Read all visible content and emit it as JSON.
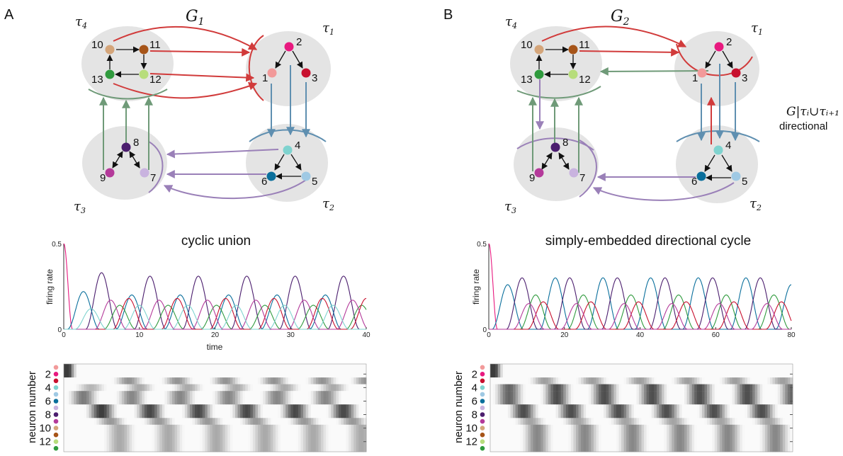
{
  "panelA": {
    "letter": "A",
    "graph_title": "G",
    "graph_sub": "1",
    "taus": [
      {
        "t": "τ",
        "s": "4"
      },
      {
        "t": "τ",
        "s": "1"
      },
      {
        "t": "τ",
        "s": "3"
      },
      {
        "t": "τ",
        "s": "2"
      }
    ],
    "chart_title": "cyclic union",
    "ylabel": "firing rate",
    "xlabel": "time",
    "yticks": [
      "0.5",
      "0"
    ],
    "xticks": [
      "0",
      "10",
      "20",
      "30",
      "40"
    ],
    "raster_ylabel": "neuron number",
    "raster_ticks": [
      "2",
      "4",
      "6",
      "8",
      "10",
      "12"
    ]
  },
  "panelB": {
    "letter": "B",
    "graph_title": "G",
    "graph_sub": "2",
    "taus": [
      {
        "t": "τ",
        "s": "4"
      },
      {
        "t": "τ",
        "s": "1"
      },
      {
        "t": "τ",
        "s": "3"
      },
      {
        "t": "τ",
        "s": "2"
      }
    ],
    "annotation_math": "G|τᵢ∪τᵢ₊₁",
    "annotation_word": "directional",
    "chart_title": "simply-embedded directional cycle",
    "ylabel": "firing rate",
    "yticks": [
      "0.5",
      "0"
    ],
    "xticks": [
      "0",
      "20",
      "40",
      "60",
      "80"
    ],
    "raster_ylabel": "neuron number",
    "raster_ticks": [
      "2",
      "4",
      "6",
      "8",
      "10",
      "12"
    ]
  },
  "node_labels": [
    "1",
    "2",
    "3",
    "4",
    "5",
    "6",
    "7",
    "8",
    "9",
    "10",
    "11",
    "12",
    "13"
  ],
  "node_colors": [
    "#f29a9a",
    "#e8197f",
    "#c8102e",
    "#7fd3cf",
    "#9fc9e4",
    "#0a6f9c",
    "#c9b3df",
    "#4b1e6e",
    "#b43a9a",
    "#d4a57a",
    "#a65418",
    "#b7dd7c",
    "#2f9a3d"
  ],
  "edge_colors": {
    "red": "#d13b3b",
    "blue": "#5f8fb0",
    "purple": "#9a80b8",
    "green": "#6f9a78"
  },
  "chart_data": [
    {
      "type": "line",
      "title": "cyclic union",
      "xlabel": "time",
      "ylabel": "firing rate",
      "xlim": [
        0,
        40
      ],
      "ylim": [
        0,
        0.5
      ],
      "period": 6.4,
      "series": [
        {
          "color": "#e8197f",
          "peaks": [
            [
              0,
              0.5
            ]
          ]
        },
        {
          "color": "#4b1e6e",
          "peaks": [
            [
              5,
              0.33
            ],
            [
              11.4,
              0.31
            ],
            [
              17.8,
              0.31
            ],
            [
              24.2,
              0.31
            ],
            [
              30.6,
              0.31
            ],
            [
              37,
              0.31
            ]
          ]
        },
        {
          "color": "#0a6f9c",
          "peaks": [
            [
              2.6,
              0.22
            ],
            [
              9,
              0.2
            ],
            [
              15.4,
              0.2
            ],
            [
              21.8,
              0.2
            ],
            [
              28.2,
              0.2
            ],
            [
              34.6,
              0.2
            ]
          ]
        },
        {
          "color": "#2f9a3d",
          "peaks": [
            [
              7.4,
              0.14
            ],
            [
              13.8,
              0.14
            ],
            [
              20.2,
              0.14
            ],
            [
              26.6,
              0.14
            ],
            [
              33,
              0.14
            ],
            [
              39.4,
              0.14
            ]
          ]
        },
        {
          "color": "#c8102e",
          "peaks": [
            [
              8.6,
              0.18
            ],
            [
              15,
              0.18
            ],
            [
              21.4,
              0.18
            ],
            [
              27.8,
              0.18
            ],
            [
              34.2,
              0.18
            ],
            [
              40,
              0.18
            ]
          ]
        },
        {
          "color": "#b43a9a",
          "peaks": [
            [
              6.2,
              0.17
            ],
            [
              12.6,
              0.17
            ],
            [
              19,
              0.17
            ],
            [
              25.4,
              0.17
            ],
            [
              31.8,
              0.17
            ],
            [
              38.2,
              0.17
            ]
          ]
        },
        {
          "color": "#7fd3cf",
          "peaks": [
            [
              3.6,
              0.12
            ],
            [
              10,
              0.14
            ],
            [
              16.4,
              0.14
            ],
            [
              22.8,
              0.14
            ],
            [
              29.2,
              0.14
            ],
            [
              35.6,
              0.14
            ]
          ]
        }
      ]
    },
    {
      "type": "line",
      "title": "simply-embedded directional cycle",
      "ylabel": "firing rate",
      "xlim": [
        0,
        80
      ],
      "ylim": [
        0,
        0.5
      ],
      "period": 12.6,
      "series": [
        {
          "color": "#e8197f",
          "peaks": [
            [
              0,
              0.5
            ]
          ]
        },
        {
          "color": "#0a6f9c",
          "peaks": [
            [
              5,
              0.26
            ],
            [
              17.6,
              0.3
            ],
            [
              30.2,
              0.3
            ],
            [
              42.8,
              0.3
            ],
            [
              55.4,
              0.3
            ],
            [
              68,
              0.3
            ],
            [
              80,
              0.26
            ]
          ]
        },
        {
          "color": "#4b1e6e",
          "peaks": [
            [
              8.8,
              0.3
            ],
            [
              21.4,
              0.3
            ],
            [
              34,
              0.3
            ],
            [
              46.6,
              0.3
            ],
            [
              59.2,
              0.3
            ],
            [
              71.8,
              0.3
            ]
          ]
        },
        {
          "color": "#2f9a3d",
          "peaks": [
            [
              12.4,
              0.2
            ],
            [
              25,
              0.2
            ],
            [
              37.6,
              0.2
            ],
            [
              50.2,
              0.2
            ],
            [
              62.8,
              0.2
            ],
            [
              75.4,
              0.2
            ]
          ]
        },
        {
          "color": "#c8102e",
          "peaks": [
            [
              14.4,
              0.16
            ],
            [
              27,
              0.16
            ],
            [
              39.6,
              0.16
            ],
            [
              52.2,
              0.16
            ],
            [
              64.8,
              0.16
            ],
            [
              77.4,
              0.16
            ]
          ]
        },
        {
          "color": "#b43a9a",
          "peaks": [
            [
              10.6,
              0.15
            ],
            [
              23.2,
              0.15
            ],
            [
              35.8,
              0.15
            ],
            [
              48.4,
              0.15
            ],
            [
              61,
              0.15
            ],
            [
              73.6,
              0.15
            ]
          ]
        }
      ]
    }
  ]
}
